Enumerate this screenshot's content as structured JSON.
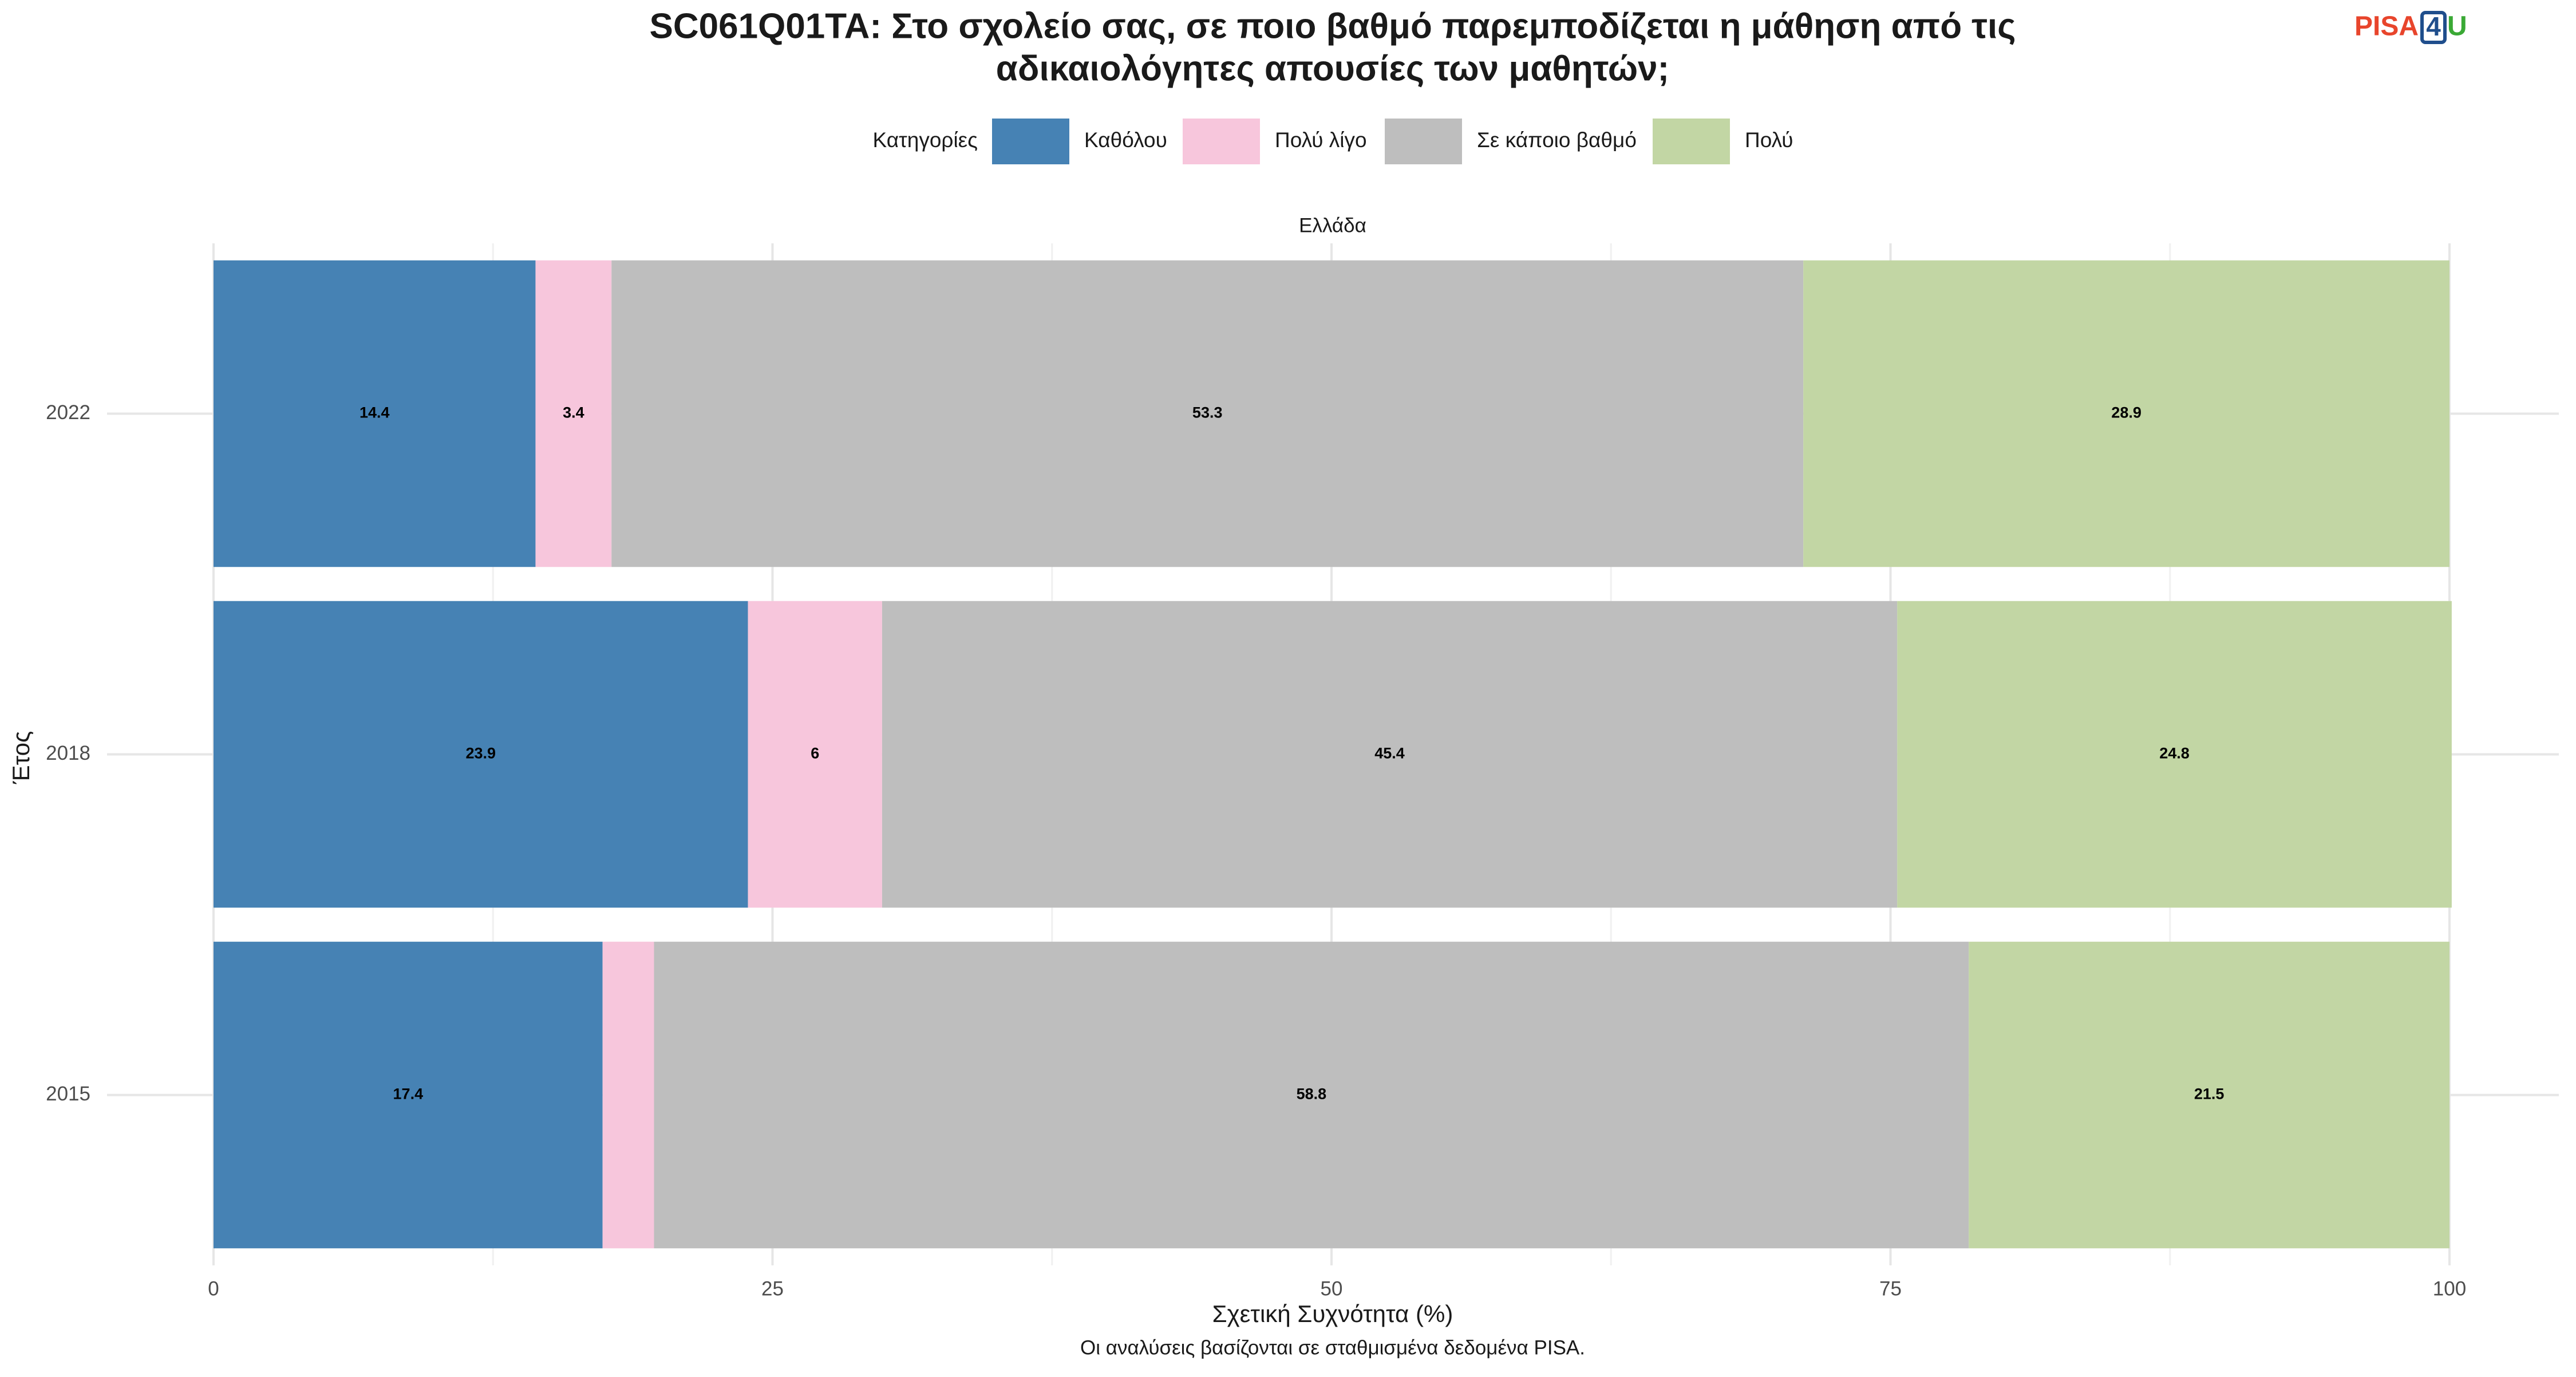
{
  "logo": [
    "PISA",
    "4",
    "U"
  ],
  "chart_data": {
    "type": "stacked-bar-horizontal",
    "title": [
      "SC061Q01TA: Στο σχολείο σας, σε ποιο βαθμό παρεμποδίζεται η μάθηση από τις",
      "αδικαιολόγητες απουσίες των μαθητών;"
    ],
    "legend_title": "Κατηγορίες",
    "facet_label": "Ελλάδα",
    "x_label": "Σχετική Συχνότητα (%)",
    "y_label": "Έτος",
    "caption": "Οι αναλύσεις βασίζονται σε σταθμισμένα δεδομένα PISA.",
    "categories": [
      "2022",
      "2018",
      "2015"
    ],
    "series": [
      {
        "name": "Καθόλου",
        "color": "#4682b4",
        "values": [
          14.4,
          23.9,
          17.4
        ]
      },
      {
        "name": "Πολύ λίγο",
        "color": "#f7c6dc",
        "values": [
          3.4,
          6,
          2.3
        ]
      },
      {
        "name": "Σε κάποιο βαθμό",
        "color": "#bebebe",
        "values": [
          53.3,
          45.4,
          58.8
        ]
      },
      {
        "name": "Πολύ",
        "color": "#c2d6a4",
        "values": [
          28.9,
          24.8,
          21.5
        ]
      }
    ],
    "xlim": [
      0,
      100
    ],
    "xticks": [
      0,
      25,
      50,
      75,
      100
    ],
    "grid": true,
    "legend": "top"
  }
}
